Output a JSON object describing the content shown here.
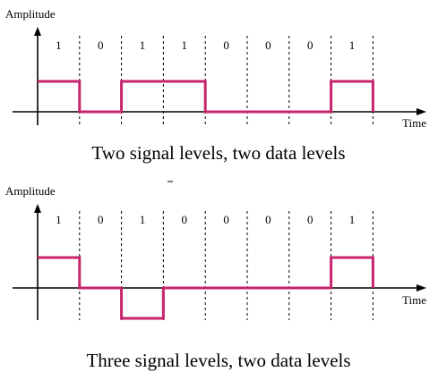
{
  "panels": [
    {
      "ylabel": "Amplitude",
      "xlabel": "Time",
      "bits": [
        "1",
        "0",
        "1",
        "1",
        "0",
        "0",
        "0",
        "1"
      ],
      "levels": [
        1,
        0,
        1,
        1,
        0,
        0,
        0,
        1
      ],
      "caption": "Two signal levels, two data levels"
    },
    {
      "ylabel": "Amplitude",
      "xlabel": "Time",
      "bits": [
        "1",
        "0",
        "1",
        "0",
        "0",
        "0",
        "0",
        "1"
      ],
      "levels": [
        1,
        0,
        -1,
        0,
        0,
        0,
        0,
        1
      ],
      "caption": "Three signal levels, two data levels"
    }
  ],
  "colors": {
    "signal": "#c8246c",
    "axis": "#000000"
  }
}
